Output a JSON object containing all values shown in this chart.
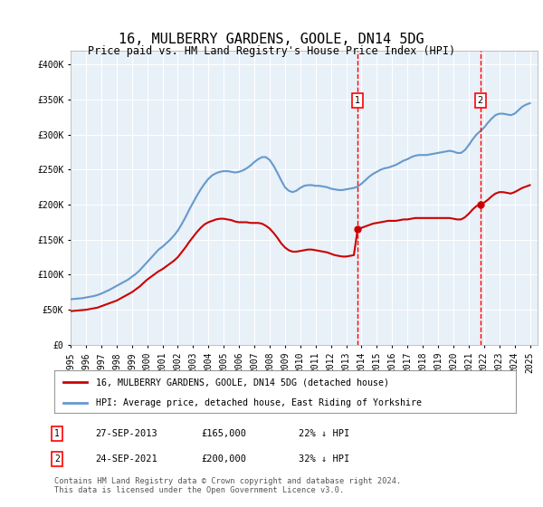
{
  "title": "16, MULBERRY GARDENS, GOOLE, DN14 5DG",
  "subtitle": "Price paid vs. HM Land Registry's House Price Index (HPI)",
  "ylabel_ticks": [
    "£0",
    "£50K",
    "£100K",
    "£150K",
    "£200K",
    "£250K",
    "£300K",
    "£350K",
    "£400K"
  ],
  "ytick_values": [
    0,
    50000,
    100000,
    150000,
    200000,
    250000,
    300000,
    350000,
    400000
  ],
  "ylim": [
    0,
    420000
  ],
  "xlim_start": 1995.0,
  "xlim_end": 2025.5,
  "background_color": "#ffffff",
  "plot_bg_color": "#e8f0f8",
  "grid_color": "#ffffff",
  "hpi_line_color": "#6699cc",
  "price_line_color": "#cc0000",
  "marker1_date": 2013.75,
  "marker1_price": 165000,
  "marker2_date": 2021.75,
  "marker2_price": 200000,
  "legend_label_red": "16, MULBERRY GARDENS, GOOLE, DN14 5DG (detached house)",
  "legend_label_blue": "HPI: Average price, detached house, East Riding of Yorkshire",
  "table_rows": [
    {
      "num": "1",
      "date": "27-SEP-2013",
      "price": "£165,000",
      "hpi": "22% ↓ HPI"
    },
    {
      "num": "2",
      "date": "24-SEP-2021",
      "price": "£200,000",
      "hpi": "32% ↓ HPI"
    }
  ],
  "footer": "Contains HM Land Registry data © Crown copyright and database right 2024.\nThis data is licensed under the Open Government Licence v3.0.",
  "hpi_data_x": [
    1995.0,
    1995.25,
    1995.5,
    1995.75,
    1996.0,
    1996.25,
    1996.5,
    1996.75,
    1997.0,
    1997.25,
    1997.5,
    1997.75,
    1998.0,
    1998.25,
    1998.5,
    1998.75,
    1999.0,
    1999.25,
    1999.5,
    1999.75,
    2000.0,
    2000.25,
    2000.5,
    2000.75,
    2001.0,
    2001.25,
    2001.5,
    2001.75,
    2002.0,
    2002.25,
    2002.5,
    2002.75,
    2003.0,
    2003.25,
    2003.5,
    2003.75,
    2004.0,
    2004.25,
    2004.5,
    2004.75,
    2005.0,
    2005.25,
    2005.5,
    2005.75,
    2006.0,
    2006.25,
    2006.5,
    2006.75,
    2007.0,
    2007.25,
    2007.5,
    2007.75,
    2008.0,
    2008.25,
    2008.5,
    2008.75,
    2009.0,
    2009.25,
    2009.5,
    2009.75,
    2010.0,
    2010.25,
    2010.5,
    2010.75,
    2011.0,
    2011.25,
    2011.5,
    2011.75,
    2012.0,
    2012.25,
    2012.5,
    2012.75,
    2013.0,
    2013.25,
    2013.5,
    2013.75,
    2014.0,
    2014.25,
    2014.5,
    2014.75,
    2015.0,
    2015.25,
    2015.5,
    2015.75,
    2016.0,
    2016.25,
    2016.5,
    2016.75,
    2017.0,
    2017.25,
    2017.5,
    2017.75,
    2018.0,
    2018.25,
    2018.5,
    2018.75,
    2019.0,
    2019.25,
    2019.5,
    2019.75,
    2020.0,
    2020.25,
    2020.5,
    2020.75,
    2021.0,
    2021.25,
    2021.5,
    2021.75,
    2022.0,
    2022.25,
    2022.5,
    2022.75,
    2023.0,
    2023.25,
    2023.5,
    2023.75,
    2024.0,
    2024.25,
    2024.5,
    2024.75,
    2025.0
  ],
  "hpi_data_y": [
    65000,
    65500,
    66000,
    66500,
    67500,
    68500,
    69500,
    71000,
    73000,
    75500,
    78000,
    81000,
    84000,
    87000,
    90000,
    93000,
    97000,
    101000,
    106000,
    112000,
    118000,
    124000,
    130000,
    136000,
    140000,
    145000,
    150000,
    156000,
    163000,
    172000,
    182000,
    193000,
    203000,
    213000,
    222000,
    230000,
    237000,
    242000,
    245000,
    247000,
    248000,
    248000,
    247000,
    246000,
    247000,
    249000,
    252000,
    256000,
    261000,
    265000,
    268000,
    268000,
    264000,
    256000,
    246000,
    235000,
    225000,
    220000,
    218000,
    220000,
    224000,
    227000,
    228000,
    228000,
    227000,
    227000,
    226000,
    225000,
    223000,
    222000,
    221000,
    221000,
    222000,
    223000,
    224000,
    226000,
    230000,
    235000,
    240000,
    244000,
    247000,
    250000,
    252000,
    253000,
    255000,
    257000,
    260000,
    263000,
    265000,
    268000,
    270000,
    271000,
    271000,
    271000,
    272000,
    273000,
    274000,
    275000,
    276000,
    277000,
    276000,
    274000,
    274000,
    278000,
    285000,
    293000,
    300000,
    305000,
    310000,
    317000,
    323000,
    328000,
    330000,
    330000,
    329000,
    328000,
    330000,
    335000,
    340000,
    343000,
    345000
  ],
  "price_data_x": [
    1995.0,
    1995.25,
    1995.5,
    1995.75,
    1996.0,
    1996.25,
    1996.5,
    1996.75,
    1997.0,
    1997.25,
    1997.5,
    1997.75,
    1998.0,
    1998.25,
    1998.5,
    1998.75,
    1999.0,
    1999.25,
    1999.5,
    1999.75,
    2000.0,
    2000.25,
    2000.5,
    2000.75,
    2001.0,
    2001.25,
    2001.5,
    2001.75,
    2002.0,
    2002.25,
    2002.5,
    2002.75,
    2003.0,
    2003.25,
    2003.5,
    2003.75,
    2004.0,
    2004.25,
    2004.5,
    2004.75,
    2005.0,
    2005.25,
    2005.5,
    2005.75,
    2006.0,
    2006.25,
    2006.5,
    2006.75,
    2007.0,
    2007.25,
    2007.5,
    2007.75,
    2008.0,
    2008.25,
    2008.5,
    2008.75,
    2009.0,
    2009.25,
    2009.5,
    2009.75,
    2010.0,
    2010.25,
    2010.5,
    2010.75,
    2011.0,
    2011.25,
    2011.5,
    2011.75,
    2012.0,
    2012.25,
    2012.5,
    2012.75,
    2013.0,
    2013.25,
    2013.5,
    2013.75,
    2014.0,
    2014.25,
    2014.5,
    2014.75,
    2015.0,
    2015.25,
    2015.5,
    2015.75,
    2016.0,
    2016.25,
    2016.5,
    2016.75,
    2017.0,
    2017.25,
    2017.5,
    2017.75,
    2018.0,
    2018.25,
    2018.5,
    2018.75,
    2019.0,
    2019.25,
    2019.5,
    2019.75,
    2020.0,
    2020.25,
    2020.5,
    2020.75,
    2021.0,
    2021.25,
    2021.5,
    2021.75,
    2022.0,
    2022.25,
    2022.5,
    2022.75,
    2023.0,
    2023.25,
    2023.5,
    2023.75,
    2024.0,
    2024.25,
    2024.5,
    2024.75,
    2025.0
  ],
  "price_data_y": [
    48000,
    48500,
    49000,
    49500,
    50000,
    51000,
    52000,
    53000,
    55000,
    57000,
    59000,
    61000,
    63000,
    66000,
    69000,
    72000,
    75000,
    79000,
    83000,
    88000,
    93000,
    97000,
    101000,
    105000,
    108000,
    112000,
    116000,
    120000,
    125000,
    132000,
    139000,
    147000,
    154000,
    161000,
    167000,
    172000,
    175000,
    177000,
    179000,
    180000,
    180000,
    179000,
    178000,
    176000,
    175000,
    175000,
    175000,
    174000,
    174000,
    174000,
    173000,
    170000,
    166000,
    160000,
    153000,
    145000,
    139000,
    135000,
    133000,
    133000,
    134000,
    135000,
    136000,
    136000,
    135000,
    134000,
    133000,
    132000,
    130000,
    128000,
    127000,
    126000,
    126000,
    127000,
    128000,
    165000,
    167000,
    169000,
    171000,
    173000,
    174000,
    175000,
    176000,
    177000,
    177000,
    177000,
    178000,
    179000,
    179000,
    180000,
    181000,
    181000,
    181000,
    181000,
    181000,
    181000,
    181000,
    181000,
    181000,
    181000,
    180000,
    179000,
    179000,
    182000,
    187000,
    193000,
    198000,
    200000,
    203000,
    207000,
    212000,
    216000,
    218000,
    218000,
    217000,
    216000,
    218000,
    221000,
    224000,
    226000,
    228000
  ]
}
